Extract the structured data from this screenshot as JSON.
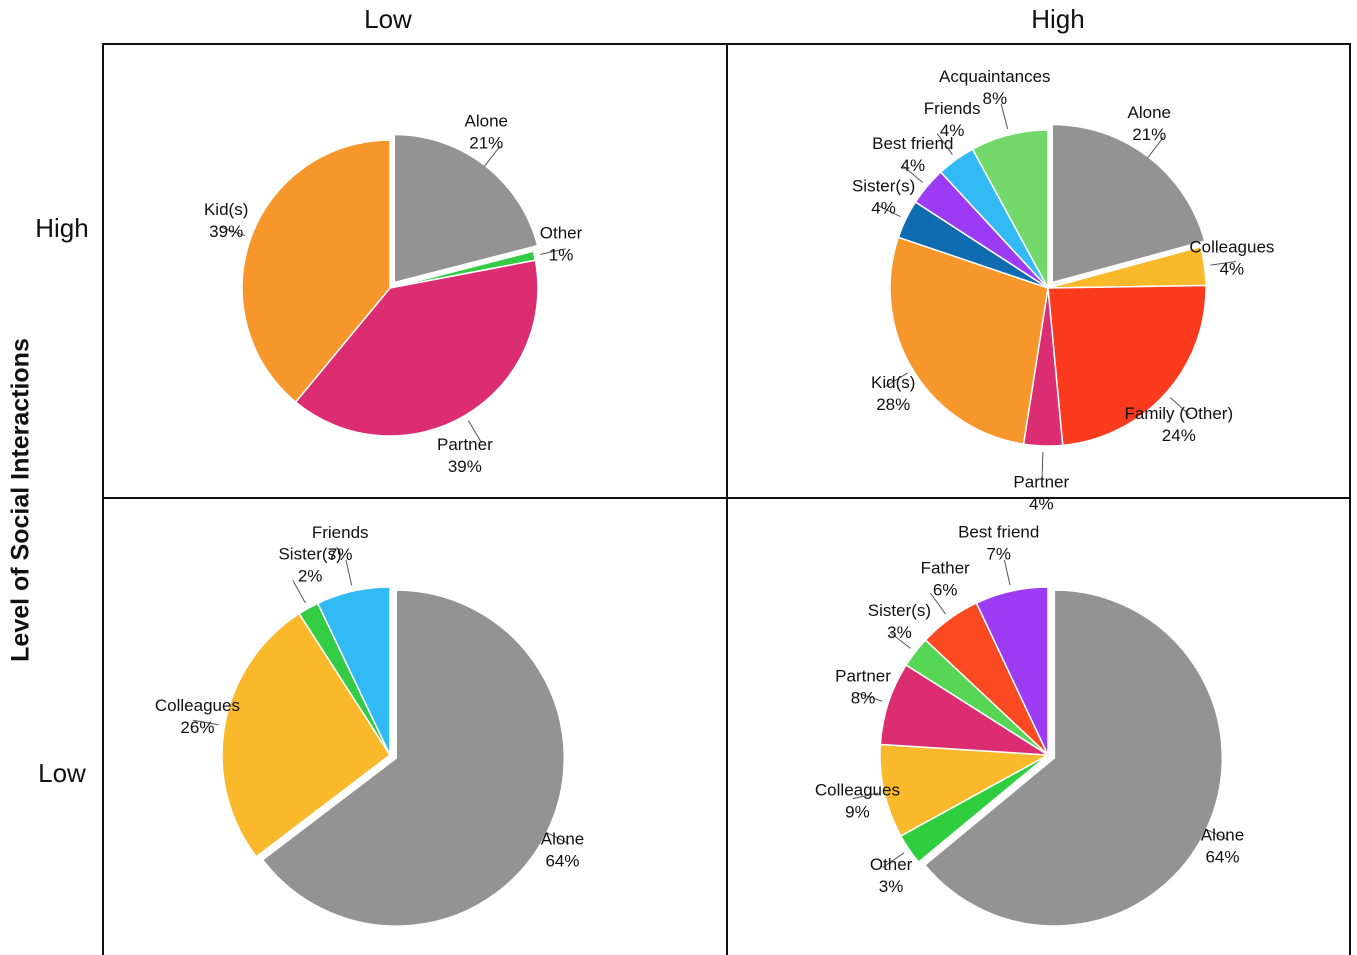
{
  "column_labels": [
    "Low",
    "High"
  ],
  "row_labels": [
    "High",
    "Low"
  ],
  "y_axis_label": "Level of Social Interactions",
  "chart_data": [
    {
      "type": "pie",
      "categories": [
        "Alone",
        "Other",
        "Partner",
        "Kid(s)"
      ],
      "values": [
        21,
        1,
        39,
        39
      ],
      "value_labels": [
        "21%",
        "1%",
        "39%",
        "39%"
      ],
      "colors": [
        "#939393",
        "#33cc44",
        "#dc2d72",
        "#f7962a"
      ],
      "exploded": "Alone"
    },
    {
      "type": "pie",
      "categories": [
        "Alone",
        "Colleagues",
        "Family (Other)",
        "Partner",
        "Kid(s)",
        "Sister(s)",
        "Best friend",
        "Friends",
        "Acquaintances"
      ],
      "values": [
        21,
        4,
        24,
        4,
        28,
        4,
        4,
        4,
        8
      ],
      "value_labels": [
        "21%",
        "4%",
        "24%",
        "4%",
        "28%",
        "4%",
        "4%",
        "4%",
        "8%"
      ],
      "colors": [
        "#939393",
        "#f9b92a",
        "#fb3a1e",
        "#dc2d72",
        "#f7962a",
        "#0f6cb0",
        "#9b3cf4",
        "#32baf5",
        "#73d86a"
      ],
      "exploded": "Alone"
    },
    {
      "type": "pie",
      "categories": [
        "Alone",
        "Colleagues",
        "Sister(s)",
        "Friends"
      ],
      "values": [
        64,
        26,
        2,
        7
      ],
      "value_labels": [
        "64%",
        "26%",
        "2%",
        "7%"
      ],
      "colors": [
        "#939393",
        "#f9b92a",
        "#33cc44",
        "#32baf5"
      ],
      "exploded": "Alone"
    },
    {
      "type": "pie",
      "categories": [
        "Alone",
        "Other",
        "Colleagues",
        "Partner",
        "Sister(s)",
        "Father",
        "Best friend"
      ],
      "values": [
        64,
        3,
        9,
        8,
        3,
        6,
        7
      ],
      "value_labels": [
        "64%",
        "3%",
        "9%",
        "8%",
        "3%",
        "6%",
        "7%"
      ],
      "colors": [
        "#939393",
        "#2fce3f",
        "#f9b92a",
        "#dc2d72",
        "#57d655",
        "#fb4a22",
        "#9b3cf4"
      ],
      "exploded": "Alone"
    }
  ]
}
